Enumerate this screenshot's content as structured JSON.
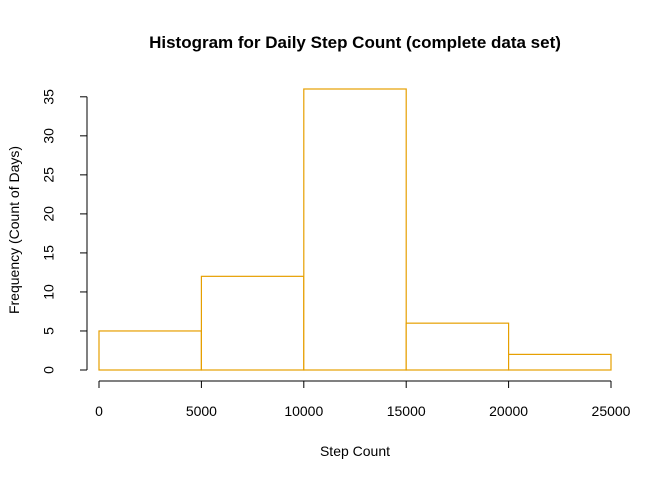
{
  "chart_data": {
    "type": "bar",
    "title": "Histogram for Daily Step Count (complete data set)",
    "xlabel": "Step Count",
    "ylabel": "Frequency (Count of Days)",
    "bins": [
      {
        "start": 0,
        "end": 5000,
        "count": 5
      },
      {
        "start": 5000,
        "end": 10000,
        "count": 12
      },
      {
        "start": 10000,
        "end": 15000,
        "count": 36
      },
      {
        "start": 15000,
        "end": 20000,
        "count": 6
      },
      {
        "start": 20000,
        "end": 25000,
        "count": 2
      }
    ],
    "xlim": [
      0,
      25000
    ],
    "ylim": [
      0,
      36
    ],
    "x_ticks": [
      0,
      5000,
      10000,
      15000,
      20000,
      25000
    ],
    "y_ticks": [
      0,
      5,
      10,
      15,
      20,
      25,
      30,
      35
    ],
    "bar_border_color": "#E69F00",
    "grid": false
  }
}
